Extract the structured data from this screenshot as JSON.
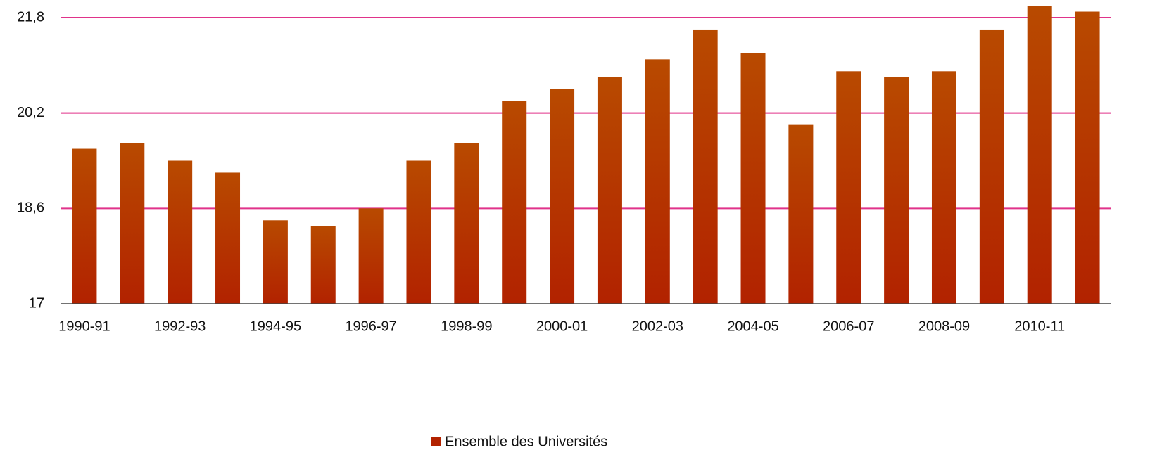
{
  "chart_data": {
    "type": "bar",
    "categories": [
      "1990-91",
      null,
      "1992-93",
      null,
      "1994-95",
      null,
      "1996-97",
      null,
      "1998-99",
      null,
      "2000-01",
      null,
      "2002-03",
      null,
      "2004-05",
      null,
      "2006-07",
      null,
      "2008-09",
      null,
      "2010-11",
      null
    ],
    "series": [
      {
        "name": "Ensemble des Universités",
        "color": "#b22200",
        "values": [
          19.6,
          19.7,
          19.4,
          19.2,
          18.4,
          18.3,
          18.6,
          19.4,
          19.7,
          20.4,
          20.6,
          20.8,
          21.1,
          21.6,
          21.2,
          20.0,
          20.9,
          20.8,
          20.9,
          21.6,
          22.0,
          21.9
        ]
      }
    ],
    "ylim": [
      17,
      21.8
    ],
    "yticks": [
      17,
      {
        "value": 18.6,
        "label": "18,6"
      },
      {
        "value": 20.2,
        "label": "20,2"
      },
      {
        "value": 21.8,
        "label": "21,8"
      }
    ],
    "grid": true,
    "grid_color": "#e0338a",
    "legend": "bottom"
  }
}
